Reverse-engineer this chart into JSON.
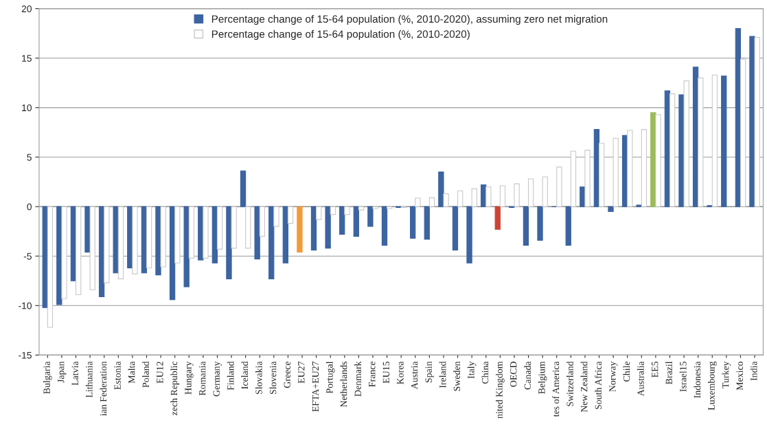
{
  "chart_data": {
    "type": "bar",
    "categories": [
      "Bulgaria",
      "Japan",
      "Latvia",
      "Lithuania",
      "ian Federation",
      "Estonia",
      "Malta",
      "Poland",
      "EU12",
      "zech Republic",
      "Hungary",
      "Romania",
      "Germany",
      "Finland",
      "Iceland",
      "Slovakia",
      "Slovenia",
      "Greece",
      "EU27",
      "EFTA+EU27",
      "Portugal",
      "Netherlands",
      "Denmark",
      "France",
      "EU15",
      "Korea",
      "Austria",
      "Spain",
      "Ireland",
      "Sweden",
      "Italy",
      "China",
      "nited Kingdom",
      "OECD",
      "Canada",
      "Belgium",
      "tes of America",
      "Switzerland",
      "New Zealand",
      "South Africa",
      "Norway",
      "Chile",
      "Australia",
      "EE5",
      "Brazil",
      "Israel15",
      "Indonesia",
      "Luxembourg",
      "Turkey",
      "Mexico",
      "India"
    ],
    "series": [
      {
        "name": "Percentage change of 15-64 population (%, 2010-2020), assuming zero net migration",
        "color": "#3b64a0",
        "colors": [
          "#3b64a0",
          "#3b64a0",
          "#3b64a0",
          "#3b64a0",
          "#3b64a0",
          "#3b64a0",
          "#3b64a0",
          "#3b64a0",
          "#3b64a0",
          "#3b64a0",
          "#3b64a0",
          "#3b64a0",
          "#3b64a0",
          "#3b64a0",
          "#3b64a0",
          "#3b64a0",
          "#3b64a0",
          "#3b64a0",
          "#f39a3b",
          "#3b64a0",
          "#3b64a0",
          "#3b64a0",
          "#3b64a0",
          "#3b64a0",
          "#3b64a0",
          "#3b64a0",
          "#3b64a0",
          "#3b64a0",
          "#3b64a0",
          "#3b64a0",
          "#3b64a0",
          "#3b64a0",
          "#cc4433",
          "#3b64a0",
          "#3b64a0",
          "#3b64a0",
          "#3b64a0",
          "#3b64a0",
          "#3b64a0",
          "#3b64a0",
          "#3b64a0",
          "#3b64a0",
          "#3b64a0",
          "#9bbb59",
          "#3b64a0",
          "#3b64a0",
          "#3b64a0",
          "#3b64a0",
          "#3b64a0",
          "#3b64a0",
          "#3b64a0"
        ],
        "values": [
          -10.2,
          -9.9,
          -7.5,
          -4.6,
          -9.1,
          -6.7,
          -6.2,
          -6.7,
          -6.9,
          -9.4,
          -8.1,
          -5.4,
          -5.7,
          -7.3,
          3.6,
          -5.3,
          -7.3,
          -5.7,
          -4.6,
          -4.4,
          -4.2,
          -2.8,
          -3.0,
          -2.0,
          -3.9,
          -0.1,
          -3.2,
          -3.3,
          3.5,
          -4.4,
          -5.7,
          2.2,
          -2.3,
          -0.1,
          -3.9,
          -3.4,
          0,
          -3.9,
          2.0,
          7.8,
          -0.5,
          7.2,
          0.15,
          9.5,
          11.7,
          11.3,
          14.1,
          0.1,
          13.2,
          18.0,
          17.2
        ]
      },
      {
        "name": "Percentage change of 15-64 population (%, 2010-2020)",
        "color": "#ffffff",
        "values": [
          -12.2,
          -9.3,
          -8.9,
          -8.4,
          -7.7,
          -7.3,
          -6.8,
          -6.2,
          -6.1,
          -5.7,
          -5.2,
          -5.2,
          -4.3,
          -4.2,
          -4.2,
          -3.0,
          -2.0,
          -1.7,
          null,
          -1.3,
          -0.8,
          -0.8,
          -0.35,
          -0.2,
          -0.2,
          -0.1,
          0.85,
          0.9,
          1.3,
          1.6,
          1.8,
          2.0,
          2.1,
          2.3,
          2.8,
          3.0,
          4.0,
          5.6,
          5.7,
          6.4,
          6.9,
          7.7,
          7.8,
          9.3,
          11.4,
          12.7,
          13.0,
          13.3,
          null,
          14.9,
          17.1
        ]
      }
    ],
    "ylim": [
      -15,
      20
    ],
    "yticks": [
      -15,
      -10,
      -5,
      0,
      5,
      10,
      15,
      20
    ],
    "grid": "y",
    "legend": "top"
  }
}
